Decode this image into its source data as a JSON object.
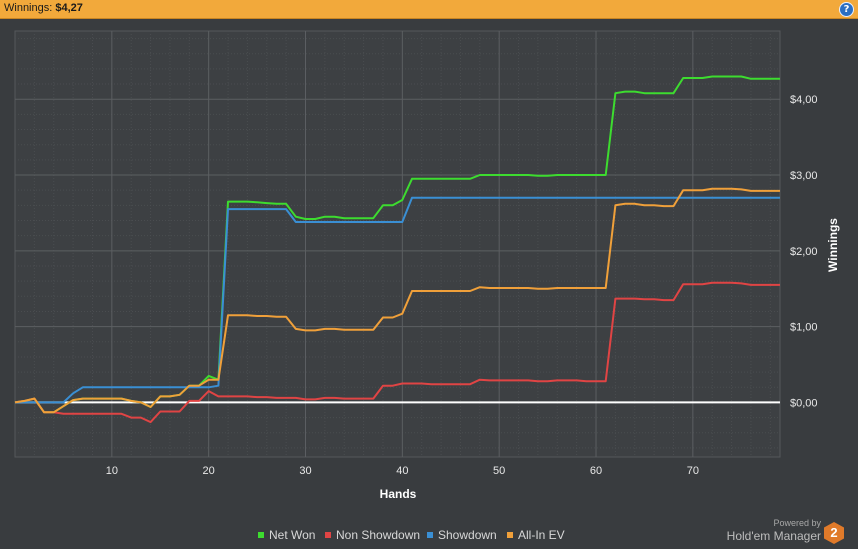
{
  "header": {
    "label": "Winnings:",
    "value": "$4,27",
    "help_icon": "?"
  },
  "branding": {
    "powered_by": "Powered by",
    "name": "Hold'em Manager",
    "badge": "2"
  },
  "chart_data": {
    "type": "line",
    "xlabel": "Hands",
    "ylabel": "Winnings",
    "xlim": [
      0,
      79
    ],
    "ylim": [
      -0.72,
      4.9
    ],
    "x_ticks": [
      10,
      20,
      30,
      40,
      50,
      60,
      70
    ],
    "y_ticks": [
      {
        "value": 0,
        "label": "$0,00"
      },
      {
        "value": 1,
        "label": "$1,00"
      },
      {
        "value": 2,
        "label": "$2,00"
      },
      {
        "value": 3,
        "label": "$3,00"
      },
      {
        "value": 4,
        "label": "$4,00"
      }
    ],
    "grid": true,
    "legend_position": "bottom",
    "series": [
      {
        "name": "Net Won",
        "color": "#3ddc2f",
        "points": [
          [
            0,
            0
          ],
          [
            1,
            0.02
          ],
          [
            2,
            0.05
          ],
          [
            3,
            -0.13
          ],
          [
            4,
            -0.13
          ],
          [
            5,
            -0.05
          ],
          [
            6,
            0.03
          ],
          [
            7,
            0.05
          ],
          [
            8,
            0.05
          ],
          [
            9,
            0.05
          ],
          [
            10,
            0.05
          ],
          [
            11,
            0.05
          ],
          [
            12,
            0.02
          ],
          [
            13,
            0
          ],
          [
            14,
            -0.06
          ],
          [
            15,
            0.08
          ],
          [
            16,
            0.08
          ],
          [
            17,
            0.1
          ],
          [
            18,
            0.22
          ],
          [
            19,
            0.22
          ],
          [
            20,
            0.35
          ],
          [
            21,
            0.3
          ],
          [
            22,
            2.65
          ],
          [
            23,
            2.65
          ],
          [
            24,
            2.65
          ],
          [
            25,
            2.64
          ],
          [
            26,
            2.63
          ],
          [
            27,
            2.62
          ],
          [
            28,
            2.62
          ],
          [
            29,
            2.45
          ],
          [
            30,
            2.42
          ],
          [
            31,
            2.42
          ],
          [
            32,
            2.45
          ],
          [
            33,
            2.45
          ],
          [
            34,
            2.43
          ],
          [
            35,
            2.43
          ],
          [
            36,
            2.43
          ],
          [
            37,
            2.43
          ],
          [
            38,
            2.6
          ],
          [
            39,
            2.6
          ],
          [
            40,
            2.67
          ],
          [
            41,
            2.95
          ],
          [
            42,
            2.95
          ],
          [
            43,
            2.95
          ],
          [
            44,
            2.95
          ],
          [
            45,
            2.95
          ],
          [
            46,
            2.95
          ],
          [
            47,
            2.95
          ],
          [
            48,
            3.0
          ],
          [
            49,
            3.0
          ],
          [
            50,
            3.0
          ],
          [
            51,
            3.0
          ],
          [
            52,
            3.0
          ],
          [
            53,
            3.0
          ],
          [
            54,
            2.99
          ],
          [
            55,
            2.99
          ],
          [
            56,
            3.0
          ],
          [
            57,
            3.0
          ],
          [
            58,
            3.0
          ],
          [
            59,
            3.0
          ],
          [
            60,
            3.0
          ],
          [
            61,
            3.0
          ],
          [
            62,
            4.08
          ],
          [
            63,
            4.1
          ],
          [
            64,
            4.1
          ],
          [
            65,
            4.08
          ],
          [
            66,
            4.08
          ],
          [
            67,
            4.08
          ],
          [
            68,
            4.08
          ],
          [
            69,
            4.28
          ],
          [
            70,
            4.28
          ],
          [
            71,
            4.28
          ],
          [
            72,
            4.3
          ],
          [
            73,
            4.3
          ],
          [
            74,
            4.3
          ],
          [
            75,
            4.3
          ],
          [
            76,
            4.27
          ],
          [
            77,
            4.27
          ],
          [
            78,
            4.27
          ],
          [
            79,
            4.27
          ]
        ]
      },
      {
        "name": "Non Showdown",
        "color": "#e04444",
        "points": [
          [
            0,
            0
          ],
          [
            1,
            0.02
          ],
          [
            2,
            0.05
          ],
          [
            3,
            -0.13
          ],
          [
            4,
            -0.13
          ],
          [
            5,
            -0.15
          ],
          [
            6,
            -0.15
          ],
          [
            7,
            -0.15
          ],
          [
            8,
            -0.15
          ],
          [
            9,
            -0.15
          ],
          [
            10,
            -0.15
          ],
          [
            11,
            -0.15
          ],
          [
            12,
            -0.2
          ],
          [
            13,
            -0.2
          ],
          [
            14,
            -0.26
          ],
          [
            15,
            -0.12
          ],
          [
            16,
            -0.12
          ],
          [
            17,
            -0.12
          ],
          [
            18,
            0.02
          ],
          [
            19,
            0.02
          ],
          [
            20,
            0.15
          ],
          [
            21,
            0.08
          ],
          [
            22,
            0.08
          ],
          [
            23,
            0.08
          ],
          [
            24,
            0.08
          ],
          [
            25,
            0.07
          ],
          [
            26,
            0.07
          ],
          [
            27,
            0.06
          ],
          [
            28,
            0.06
          ],
          [
            29,
            0.06
          ],
          [
            30,
            0.04
          ],
          [
            31,
            0.04
          ],
          [
            32,
            0.06
          ],
          [
            33,
            0.06
          ],
          [
            34,
            0.05
          ],
          [
            35,
            0.05
          ],
          [
            36,
            0.05
          ],
          [
            37,
            0.05
          ],
          [
            38,
            0.22
          ],
          [
            39,
            0.22
          ],
          [
            40,
            0.25
          ],
          [
            41,
            0.25
          ],
          [
            42,
            0.25
          ],
          [
            43,
            0.24
          ],
          [
            44,
            0.24
          ],
          [
            45,
            0.24
          ],
          [
            46,
            0.24
          ],
          [
            47,
            0.24
          ],
          [
            48,
            0.3
          ],
          [
            49,
            0.29
          ],
          [
            50,
            0.29
          ],
          [
            51,
            0.29
          ],
          [
            52,
            0.29
          ],
          [
            53,
            0.29
          ],
          [
            54,
            0.28
          ],
          [
            55,
            0.28
          ],
          [
            56,
            0.29
          ],
          [
            57,
            0.29
          ],
          [
            58,
            0.29
          ],
          [
            59,
            0.28
          ],
          [
            60,
            0.28
          ],
          [
            61,
            0.28
          ],
          [
            62,
            1.37
          ],
          [
            63,
            1.37
          ],
          [
            64,
            1.37
          ],
          [
            65,
            1.36
          ],
          [
            66,
            1.36
          ],
          [
            67,
            1.35
          ],
          [
            68,
            1.35
          ],
          [
            69,
            1.56
          ],
          [
            70,
            1.56
          ],
          [
            71,
            1.56
          ],
          [
            72,
            1.58
          ],
          [
            73,
            1.58
          ],
          [
            74,
            1.58
          ],
          [
            75,
            1.57
          ],
          [
            76,
            1.55
          ],
          [
            77,
            1.55
          ],
          [
            78,
            1.55
          ],
          [
            79,
            1.55
          ]
        ]
      },
      {
        "name": "Showdown",
        "color": "#3a8fd4",
        "points": [
          [
            0,
            0
          ],
          [
            1,
            0
          ],
          [
            2,
            0
          ],
          [
            3,
            0
          ],
          [
            4,
            0
          ],
          [
            5,
            0
          ],
          [
            6,
            0.12
          ],
          [
            7,
            0.2
          ],
          [
            8,
            0.2
          ],
          [
            9,
            0.2
          ],
          [
            10,
            0.2
          ],
          [
            11,
            0.2
          ],
          [
            12,
            0.2
          ],
          [
            13,
            0.2
          ],
          [
            14,
            0.2
          ],
          [
            15,
            0.2
          ],
          [
            16,
            0.2
          ],
          [
            17,
            0.2
          ],
          [
            18,
            0.2
          ],
          [
            19,
            0.2
          ],
          [
            20,
            0.2
          ],
          [
            21,
            0.22
          ],
          [
            22,
            2.55
          ],
          [
            23,
            2.55
          ],
          [
            24,
            2.55
          ],
          [
            25,
            2.55
          ],
          [
            26,
            2.55
          ],
          [
            27,
            2.55
          ],
          [
            28,
            2.55
          ],
          [
            29,
            2.38
          ],
          [
            30,
            2.38
          ],
          [
            31,
            2.38
          ],
          [
            32,
            2.38
          ],
          [
            33,
            2.38
          ],
          [
            34,
            2.38
          ],
          [
            35,
            2.38
          ],
          [
            36,
            2.38
          ],
          [
            37,
            2.38
          ],
          [
            38,
            2.38
          ],
          [
            39,
            2.38
          ],
          [
            40,
            2.38
          ],
          [
            41,
            2.7
          ],
          [
            42,
            2.7
          ],
          [
            43,
            2.7
          ],
          [
            44,
            2.7
          ],
          [
            45,
            2.7
          ],
          [
            46,
            2.7
          ],
          [
            47,
            2.7
          ],
          [
            48,
            2.7
          ],
          [
            49,
            2.7
          ],
          [
            50,
            2.7
          ],
          [
            51,
            2.7
          ],
          [
            52,
            2.7
          ],
          [
            53,
            2.7
          ],
          [
            54,
            2.7
          ],
          [
            55,
            2.7
          ],
          [
            56,
            2.7
          ],
          [
            57,
            2.7
          ],
          [
            58,
            2.7
          ],
          [
            59,
            2.7
          ],
          [
            60,
            2.7
          ],
          [
            61,
            2.7
          ],
          [
            62,
            2.7
          ],
          [
            63,
            2.7
          ],
          [
            64,
            2.7
          ],
          [
            65,
            2.7
          ],
          [
            66,
            2.7
          ],
          [
            67,
            2.7
          ],
          [
            68,
            2.7
          ],
          [
            69,
            2.7
          ],
          [
            70,
            2.7
          ],
          [
            71,
            2.7
          ],
          [
            72,
            2.7
          ],
          [
            73,
            2.7
          ],
          [
            74,
            2.7
          ],
          [
            75,
            2.7
          ],
          [
            76,
            2.7
          ],
          [
            77,
            2.7
          ],
          [
            78,
            2.7
          ],
          [
            79,
            2.7
          ]
        ]
      },
      {
        "name": "All-In EV",
        "color": "#f0a03a",
        "points": [
          [
            0,
            0
          ],
          [
            1,
            0.02
          ],
          [
            2,
            0.05
          ],
          [
            3,
            -0.13
          ],
          [
            4,
            -0.13
          ],
          [
            5,
            -0.05
          ],
          [
            6,
            0.03
          ],
          [
            7,
            0.05
          ],
          [
            8,
            0.05
          ],
          [
            9,
            0.05
          ],
          [
            10,
            0.05
          ],
          [
            11,
            0.05
          ],
          [
            12,
            0.02
          ],
          [
            13,
            0
          ],
          [
            14,
            -0.06
          ],
          [
            15,
            0.08
          ],
          [
            16,
            0.08
          ],
          [
            17,
            0.1
          ],
          [
            18,
            0.22
          ],
          [
            19,
            0.22
          ],
          [
            20,
            0.3
          ],
          [
            21,
            0.3
          ],
          [
            22,
            1.15
          ],
          [
            23,
            1.15
          ],
          [
            24,
            1.15
          ],
          [
            25,
            1.14
          ],
          [
            26,
            1.14
          ],
          [
            27,
            1.13
          ],
          [
            28,
            1.13
          ],
          [
            29,
            0.97
          ],
          [
            30,
            0.95
          ],
          [
            31,
            0.95
          ],
          [
            32,
            0.97
          ],
          [
            33,
            0.97
          ],
          [
            34,
            0.96
          ],
          [
            35,
            0.96
          ],
          [
            36,
            0.96
          ],
          [
            37,
            0.96
          ],
          [
            38,
            1.12
          ],
          [
            39,
            1.12
          ],
          [
            40,
            1.17
          ],
          [
            41,
            1.47
          ],
          [
            42,
            1.47
          ],
          [
            43,
            1.47
          ],
          [
            44,
            1.47
          ],
          [
            45,
            1.47
          ],
          [
            46,
            1.47
          ],
          [
            47,
            1.47
          ],
          [
            48,
            1.52
          ],
          [
            49,
            1.51
          ],
          [
            50,
            1.51
          ],
          [
            51,
            1.51
          ],
          [
            52,
            1.51
          ],
          [
            53,
            1.51
          ],
          [
            54,
            1.5
          ],
          [
            55,
            1.5
          ],
          [
            56,
            1.51
          ],
          [
            57,
            1.51
          ],
          [
            58,
            1.51
          ],
          [
            59,
            1.51
          ],
          [
            60,
            1.51
          ],
          [
            61,
            1.51
          ],
          [
            62,
            2.6
          ],
          [
            63,
            2.62
          ],
          [
            64,
            2.62
          ],
          [
            65,
            2.6
          ],
          [
            66,
            2.6
          ],
          [
            67,
            2.59
          ],
          [
            68,
            2.59
          ],
          [
            69,
            2.8
          ],
          [
            70,
            2.8
          ],
          [
            71,
            2.8
          ],
          [
            72,
            2.82
          ],
          [
            73,
            2.82
          ],
          [
            74,
            2.82
          ],
          [
            75,
            2.81
          ],
          [
            76,
            2.79
          ],
          [
            77,
            2.79
          ],
          [
            78,
            2.79
          ],
          [
            79,
            2.79
          ]
        ]
      }
    ]
  }
}
